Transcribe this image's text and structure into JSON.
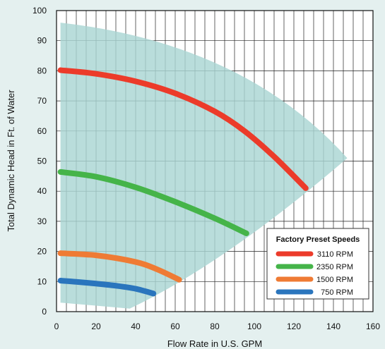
{
  "chart_data": {
    "type": "line",
    "xlabel": "Flow Rate in U.S. GPM",
    "ylabel": "Total Dynamic Head in Ft. of Water",
    "xlim": [
      0,
      160
    ],
    "ylim": [
      0,
      100
    ],
    "xticks": [
      0,
      20,
      40,
      60,
      80,
      100,
      120,
      140,
      160
    ],
    "yticks": [
      0,
      10,
      20,
      30,
      40,
      50,
      60,
      70,
      80,
      90,
      100
    ],
    "grid": true,
    "legend": {
      "title": "Factory Preset Speeds",
      "placement": "bottom-right"
    },
    "operating_region": {
      "color": "#a9d5d3",
      "points": [
        [
          2,
          96
        ],
        [
          147,
          51
        ],
        [
          37,
          1
        ],
        [
          2,
          3
        ]
      ]
    },
    "series": [
      {
        "name": "3110 RPM",
        "color": "#ec3b2a",
        "x": [
          2,
          20,
          40,
          60,
          80,
          95,
          110,
          126
        ],
        "y": [
          80.2,
          79.0,
          76.5,
          72.5,
          66.5,
          60.0,
          51.5,
          41.0
        ]
      },
      {
        "name": "2350 RPM",
        "color": "#45b449",
        "x": [
          2,
          20,
          40,
          60,
          80,
          96
        ],
        "y": [
          46.4,
          44.8,
          41.3,
          36.5,
          31.0,
          26.0
        ]
      },
      {
        "name": "1500 RPM",
        "color": "#ef7b34",
        "x": [
          2,
          20,
          40,
          51,
          62
        ],
        "y": [
          19.4,
          18.7,
          16.5,
          14.0,
          10.6
        ]
      },
      {
        "name": "750 RPM",
        "color": "#2a75bd",
        "x": [
          2,
          10,
          20,
          30,
          40,
          49
        ],
        "y": [
          10.3,
          9.9,
          9.3,
          8.6,
          7.6,
          6.0
        ]
      }
    ]
  }
}
